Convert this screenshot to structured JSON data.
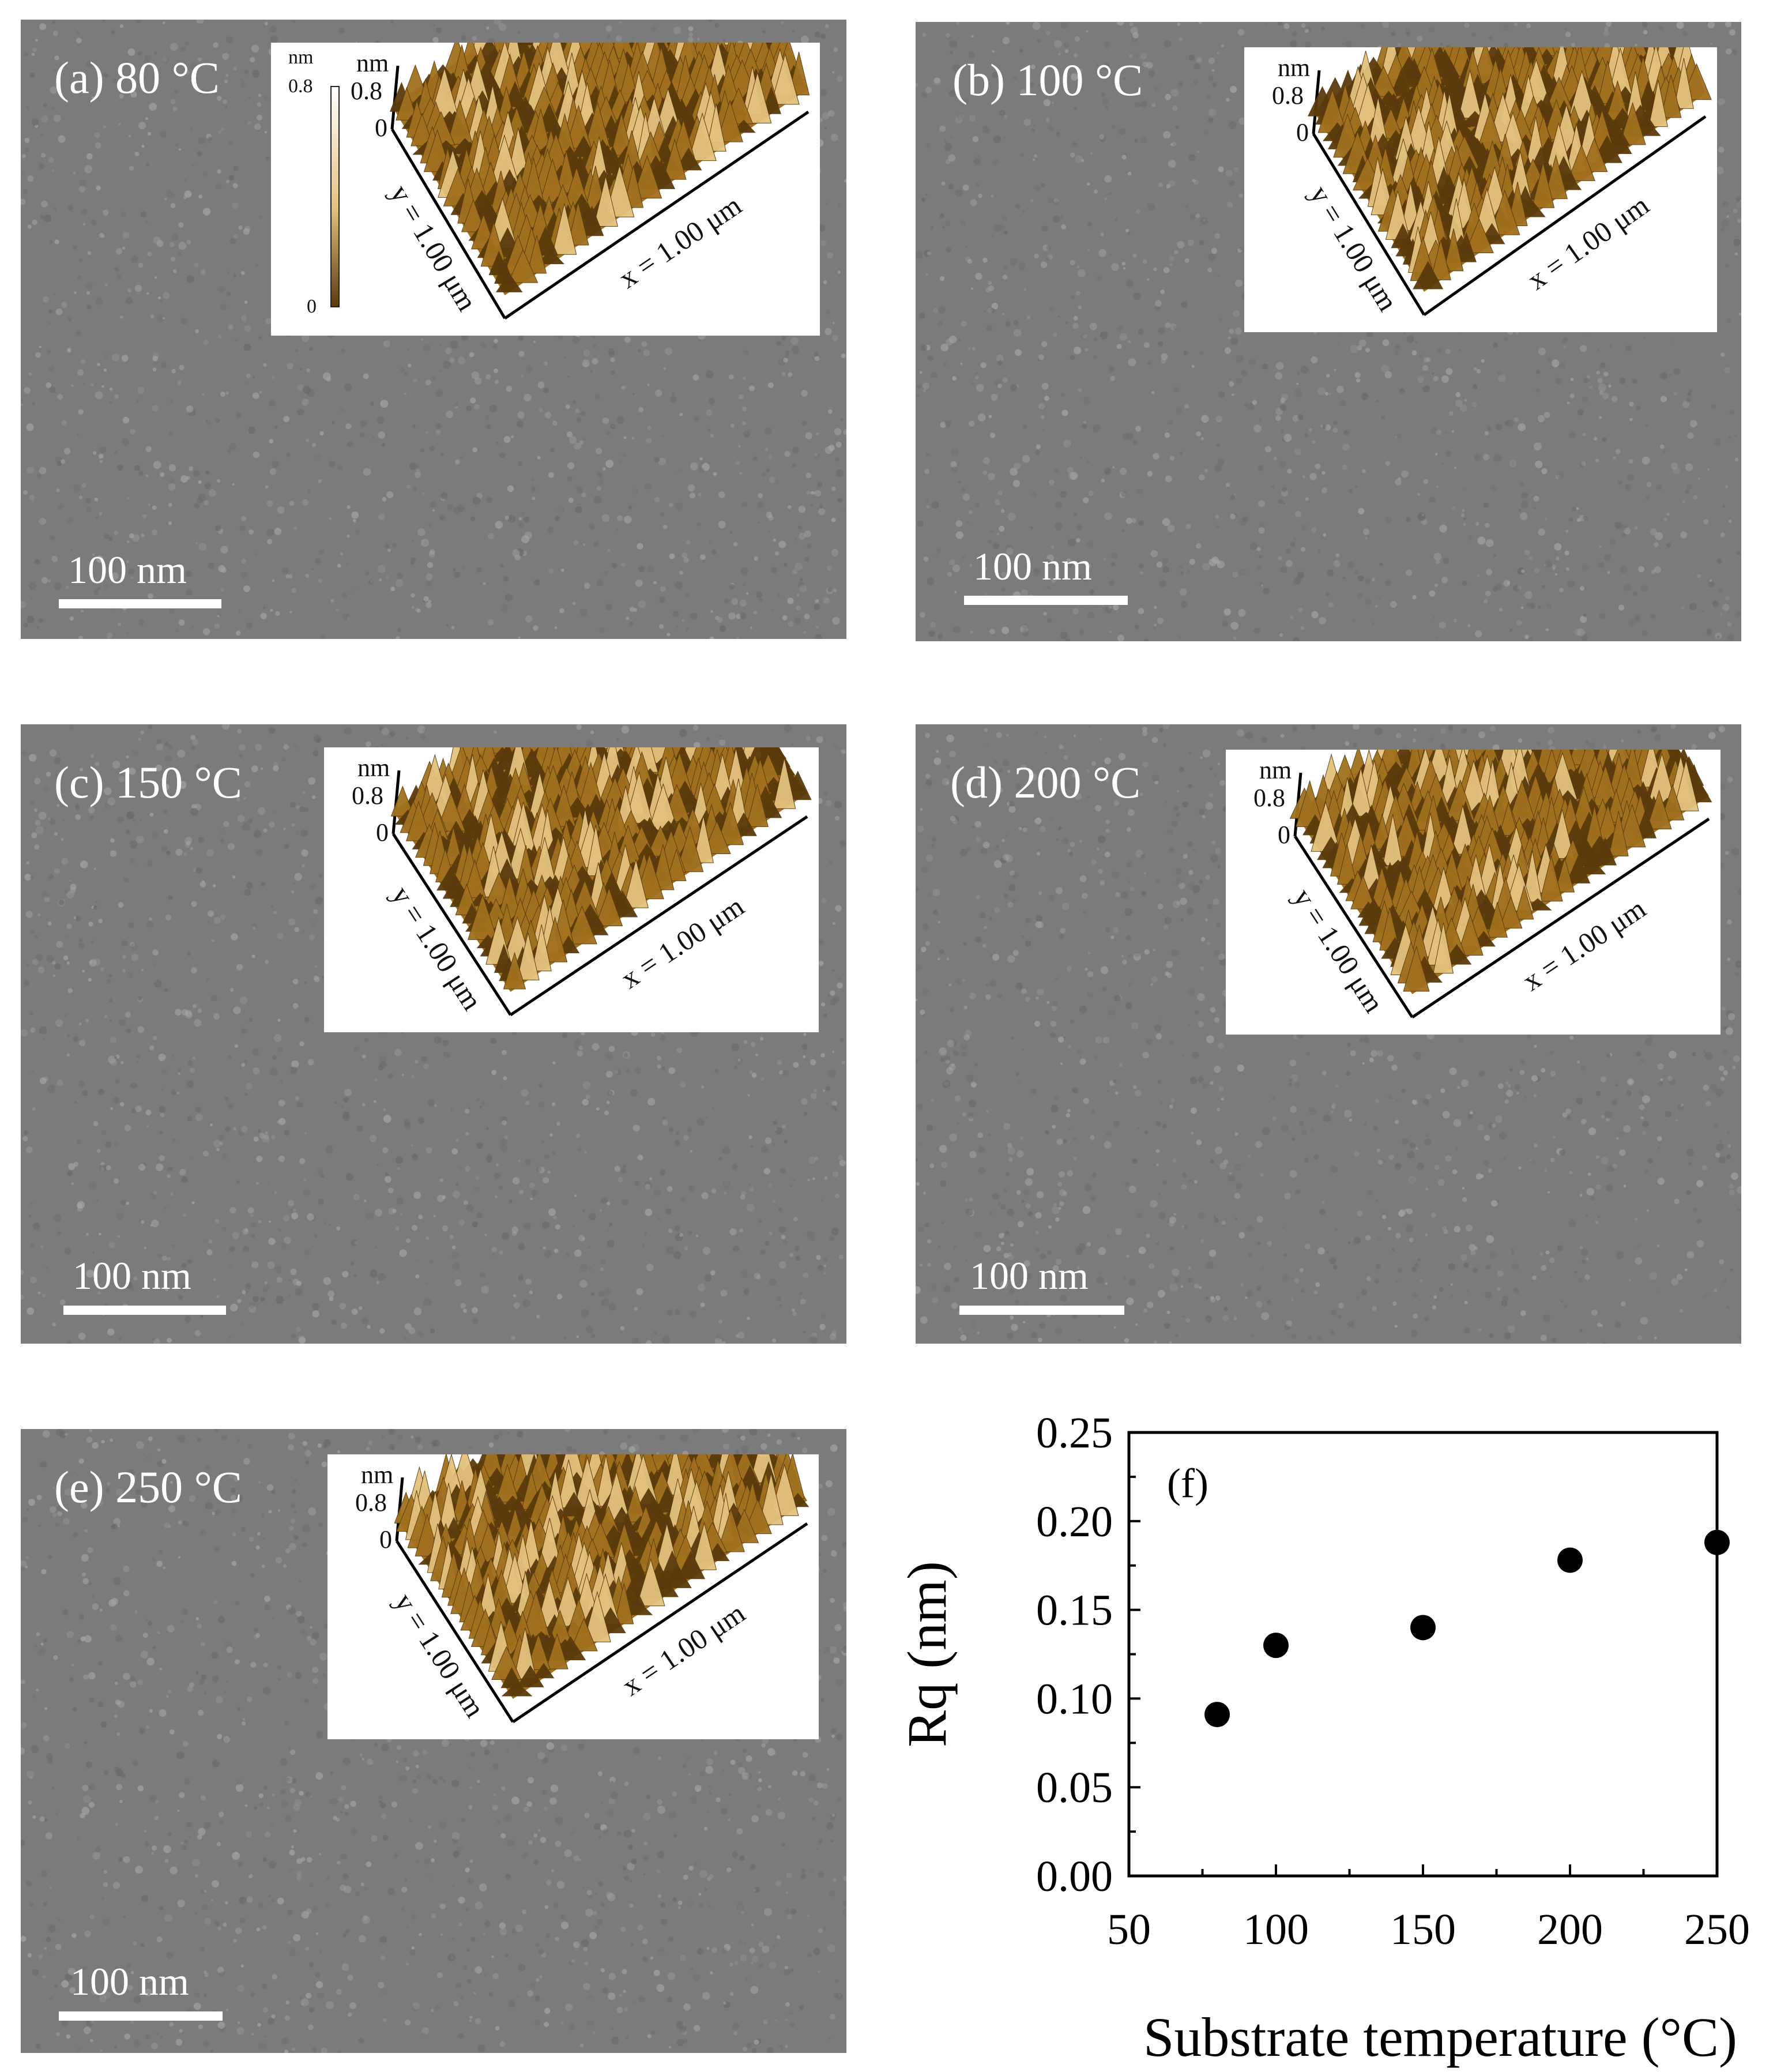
{
  "panels": [
    {
      "label": "(a) 80 °C",
      "scalebar": "100 nm",
      "inset": {
        "unit": "nm",
        "zmax": "0.8",
        "zmin": "0",
        "y_axis": "y = 1.00 μm",
        "x_axis": "x = 1.00 μm",
        "colorbar": {
          "unit": "nm",
          "max": "0.8",
          "min": "0"
        }
      }
    },
    {
      "label": "(b) 100 °C",
      "scalebar": "100 nm",
      "inset": {
        "unit": "nm",
        "zmax": "0.8",
        "zmin": "0",
        "y_axis": "y = 1.00 μm",
        "x_axis": "x = 1.00 μm"
      }
    },
    {
      "label": "(c) 150 °C",
      "scalebar": "100 nm",
      "inset": {
        "unit": "nm",
        "zmax": "0.8",
        "zmin": "0",
        "y_axis": "y = 1.00 μm",
        "x_axis": "x = 1.00 μm"
      }
    },
    {
      "label": "(d) 200 °C",
      "scalebar": "100 nm",
      "inset": {
        "unit": "nm",
        "zmax": "0.8",
        "zmin": "0",
        "y_axis": "y = 1.00 μm",
        "x_axis": "x = 1.00 μm"
      }
    },
    {
      "label": "(e) 250 °C",
      "scalebar": "100 nm",
      "inset": {
        "unit": "nm",
        "zmax": "0.8",
        "zmin": "0",
        "y_axis": "y = 1.00 μm",
        "x_axis": "x = 1.00 μm"
      }
    }
  ],
  "colors": {
    "sem_background": "#7b7b7b",
    "afm_dark": "#5a3a0c",
    "afm_mid": "#a0701e",
    "afm_light": "#e3c27e",
    "marker": "#000000"
  },
  "chart_data": {
    "type": "scatter",
    "panel_label": "(f)",
    "xlabel": "Substrate temperature (°C)",
    "ylabel": "Rq (nm)",
    "xlim": [
      50,
      250
    ],
    "ylim": [
      0.0,
      0.25
    ],
    "x_ticks": [
      "50",
      "100",
      "150",
      "200",
      "250"
    ],
    "y_ticks": [
      "0.00",
      "0.05",
      "0.10",
      "0.15",
      "0.20",
      "0.25"
    ],
    "x_tick_values": [
      50,
      100,
      150,
      200,
      250
    ],
    "y_tick_values": [
      0.0,
      0.05,
      0.1,
      0.15,
      0.2,
      0.25
    ],
    "series": [
      {
        "x": [
          80,
          100,
          150,
          200,
          250
        ],
        "y": [
          0.091,
          0.13,
          0.14,
          0.178,
          0.188
        ]
      }
    ],
    "grid": false,
    "legend": "none"
  }
}
